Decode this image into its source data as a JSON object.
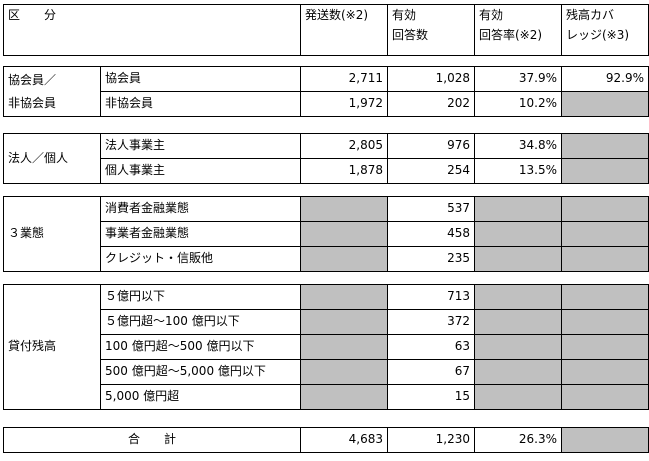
{
  "header": {
    "category": "区　　分",
    "sent": "発送数(※2)",
    "valid1": "有効",
    "valid2": "回答数",
    "rate1": "有効",
    "rate2": "回答率(※2)",
    "cov1": "残高カバ",
    "cov2": "レッジ(※3)"
  },
  "membership": {
    "label1": "協会員／",
    "label2": "非協会員",
    "rows": [
      {
        "name": "協会員",
        "sent": "2,711",
        "valid": "1,028",
        "rate": "37.9%",
        "coverage": "92.9%"
      },
      {
        "name": "非協会員",
        "sent": "1,972",
        "valid": "202",
        "rate": "10.2%"
      }
    ]
  },
  "entity": {
    "label": "法人／個人",
    "rows": [
      {
        "name": "法人事業主",
        "sent": "2,805",
        "valid": "976",
        "rate": "34.8%"
      },
      {
        "name": "個人事業主",
        "sent": "1,878",
        "valid": "254",
        "rate": "13.5%"
      }
    ]
  },
  "business": {
    "label": "３業態",
    "rows": [
      {
        "name": "消費者金融業態",
        "valid": "537"
      },
      {
        "name": "事業者金融業態",
        "valid": "458"
      },
      {
        "name": "クレジット・信販他",
        "valid": "235"
      }
    ]
  },
  "balance": {
    "label": "貸付残高",
    "rows": [
      {
        "name": "５億円以下",
        "valid": "713"
      },
      {
        "name": "５億円超～100 億円以下",
        "valid": "372"
      },
      {
        "name": "100 億円超～500 億円以下",
        "valid": "63"
      },
      {
        "name": "500 億円超～5,000 億円以下",
        "valid": "67"
      },
      {
        "name": "5,000 億円超",
        "valid": "15"
      }
    ]
  },
  "total": {
    "label": "合　　計",
    "sent": "4,683",
    "valid": "1,230",
    "rate": "26.3%"
  }
}
